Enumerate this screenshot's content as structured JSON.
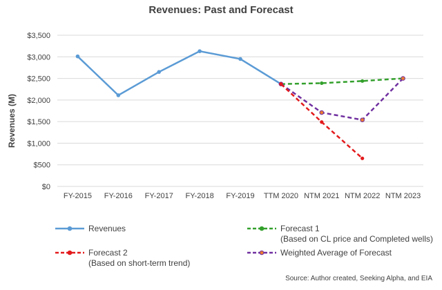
{
  "chart_data": {
    "type": "line",
    "title": "Revenues: Past and Forecast",
    "ylabel": "Revenues (M)",
    "xlabel": "",
    "categories": [
      "FY-2015",
      "FY-2016",
      "FY-2017",
      "FY-2018",
      "FY-2019",
      "TTM 2020",
      "NTM 2021",
      "NTM 2022",
      "NTM 2023"
    ],
    "y_ticks": [
      "$0",
      "$500",
      "$1,000",
      "$1,500",
      "$2,000",
      "$2,500",
      "$3,000",
      "$3,500"
    ],
    "ylim": [
      0,
      3500
    ],
    "grid": true,
    "legend_position": "bottom",
    "series": [
      {
        "name": "Revenues",
        "color": "#5b9bd5",
        "dash": "solid",
        "marker": "diamond",
        "values": [
          3010,
          2110,
          2650,
          3130,
          2950,
          2370,
          null,
          null,
          null
        ]
      },
      {
        "name": "Forecast 1",
        "note": "(Based on CL price and Completed wells)",
        "color": "#33a02c",
        "dash": "dashed",
        "marker": "dot",
        "values": [
          null,
          null,
          null,
          null,
          null,
          2370,
          2390,
          2440,
          2500
        ]
      },
      {
        "name": "Forecast 2",
        "note": "(Based on short-term trend)",
        "color": "#e31a1c",
        "dash": "dashed",
        "marker": "dot",
        "values": [
          null,
          null,
          null,
          null,
          null,
          2370,
          1490,
          650,
          null
        ]
      },
      {
        "name": "Weighted Average of Forecast",
        "color": "#7030a0",
        "dash": "dashed",
        "marker": "orange-dot",
        "values": [
          null,
          null,
          null,
          null,
          null,
          2370,
          1710,
          1540,
          2500
        ]
      }
    ],
    "source": "Source: Author created, Seeking Alpha, and EIA"
  },
  "colors": {
    "grid": "#d9d9d9",
    "text": "#404040",
    "orange_marker": "#ed7d31"
  }
}
